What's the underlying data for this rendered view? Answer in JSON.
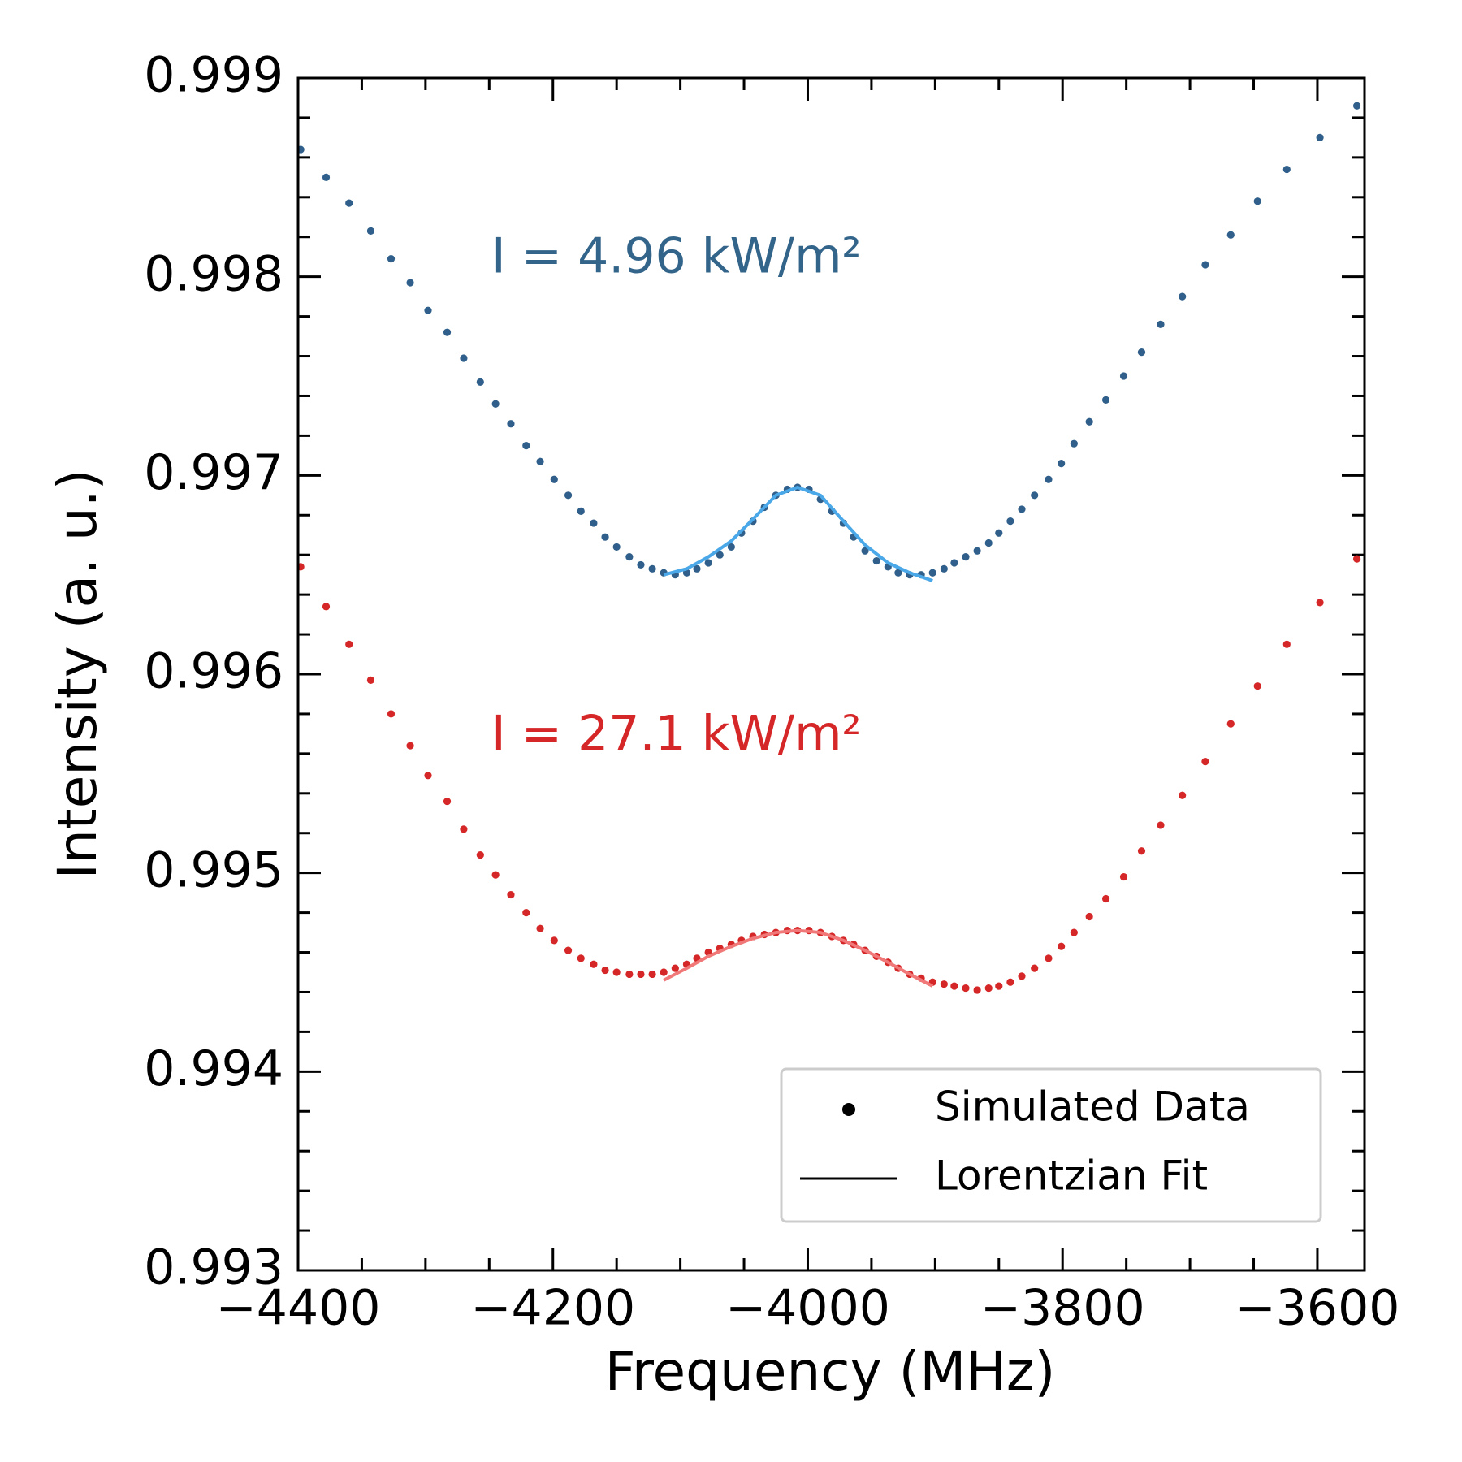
{
  "chart_data": {
    "type": "scatter",
    "xlabel": "Frequency (MHz)",
    "ylabel": "Intensity (a. u.)",
    "xlim": [
      -4400,
      -3563
    ],
    "ylim": [
      0.993,
      0.999
    ],
    "xticks": [
      {
        "value": -4400,
        "label": "−4400"
      },
      {
        "value": -4200,
        "label": "−4200"
      },
      {
        "value": -4000,
        "label": "−4000"
      },
      {
        "value": -3800,
        "label": "−3800"
      },
      {
        "value": -3600,
        "label": "−3600"
      }
    ],
    "xminorticks": [
      -4350,
      -4300,
      -4250,
      -4150,
      -4100,
      -4050,
      -3950,
      -3900,
      -3850,
      -3750,
      -3700,
      -3650
    ],
    "yticks": [
      0.993,
      0.994,
      0.995,
      0.996,
      0.997,
      0.998,
      0.999
    ],
    "yminorticks": [
      0.9932,
      0.9934,
      0.9936,
      0.9938,
      0.9942,
      0.9944,
      0.9946,
      0.9948,
      0.9952,
      0.9954,
      0.9956,
      0.9958,
      0.9962,
      0.9964,
      0.9966,
      0.9968,
      0.9972,
      0.9974,
      0.9976,
      0.9978,
      0.9982,
      0.9984,
      0.9986,
      0.9988
    ],
    "series": [
      {
        "kind": "dot",
        "color": "#2f5f8a",
        "x": [
          -4398,
          -4378,
          -4360,
          -4343,
          -4327,
          -4312,
          -4298,
          -4283,
          -4270,
          -4257,
          -4245,
          -4233,
          -4221,
          -4210,
          -4199,
          -4188,
          -4178,
          -4168,
          -4159,
          -4150,
          -4140,
          -4131,
          -4122,
          -4113,
          -4104,
          -4095,
          -4087,
          -4078,
          -4069,
          -4060,
          -4052,
          -4043,
          -4034,
          -4025,
          -4016,
          -4008,
          -3999,
          -3990,
          -3981,
          -3972,
          -3964,
          -3955,
          -3946,
          -3937,
          -3929,
          -3920,
          -3911,
          -3902,
          -3893,
          -3885,
          -3876,
          -3867,
          -3858,
          -3850,
          -3841,
          -3832,
          -3822,
          -3811,
          -3801,
          -3791,
          -3779,
          -3766,
          -3752,
          -3738,
          -3723,
          -3706,
          -3688,
          -3668,
          -3647,
          -3624,
          -3598,
          -3569
        ],
        "values": [
          0.99864,
          0.9985,
          0.99837,
          0.99823,
          0.99809,
          0.99797,
          0.99783,
          0.99772,
          0.99759,
          0.99747,
          0.99736,
          0.99726,
          0.99715,
          0.99707,
          0.99698,
          0.9969,
          0.99682,
          0.99676,
          0.99669,
          0.99664,
          0.99659,
          0.99655,
          0.99653,
          0.99651,
          0.9965,
          0.99651,
          0.99653,
          0.99656,
          0.9966,
          0.99664,
          0.99671,
          0.99677,
          0.99684,
          0.9969,
          0.99693,
          0.99694,
          0.99693,
          0.99688,
          0.99682,
          0.99676,
          0.99669,
          0.99662,
          0.99657,
          0.99654,
          0.99651,
          0.9965,
          0.9965,
          0.99651,
          0.99653,
          0.99656,
          0.99659,
          0.99662,
          0.99666,
          0.99671,
          0.99677,
          0.99683,
          0.9969,
          0.99698,
          0.99706,
          0.99716,
          0.99727,
          0.99738,
          0.9975,
          0.99762,
          0.99776,
          0.9979,
          0.99806,
          0.99821,
          0.99838,
          0.99854,
          0.9987,
          0.99886
        ]
      },
      {
        "kind": "dot",
        "color": "#d62728",
        "x": [
          -4398,
          -4378,
          -4360,
          -4343,
          -4327,
          -4312,
          -4298,
          -4283,
          -4270,
          -4257,
          -4245,
          -4233,
          -4221,
          -4210,
          -4199,
          -4188,
          -4178,
          -4168,
          -4159,
          -4150,
          -4140,
          -4131,
          -4122,
          -4113,
          -4104,
          -4095,
          -4087,
          -4078,
          -4069,
          -4060,
          -4052,
          -4043,
          -4034,
          -4025,
          -4016,
          -4008,
          -3999,
          -3990,
          -3981,
          -3972,
          -3964,
          -3955,
          -3946,
          -3937,
          -3929,
          -3920,
          -3911,
          -3902,
          -3893,
          -3885,
          -3876,
          -3867,
          -3858,
          -3850,
          -3841,
          -3832,
          -3822,
          -3811,
          -3801,
          -3791,
          -3779,
          -3766,
          -3752,
          -3738,
          -3723,
          -3706,
          -3688,
          -3668,
          -3647,
          -3624,
          -3598,
          -3569
        ],
        "values": [
          0.99654,
          0.99634,
          0.99615,
          0.99597,
          0.9958,
          0.99564,
          0.99549,
          0.99536,
          0.99522,
          0.99509,
          0.99499,
          0.99489,
          0.9948,
          0.99472,
          0.99466,
          0.99461,
          0.99457,
          0.99454,
          0.99451,
          0.9945,
          0.99449,
          0.99449,
          0.99449,
          0.9945,
          0.99452,
          0.99454,
          0.99457,
          0.9946,
          0.99462,
          0.99464,
          0.99466,
          0.99468,
          0.99469,
          0.9947,
          0.99471,
          0.99471,
          0.99471,
          0.9947,
          0.99468,
          0.99466,
          0.99464,
          0.99461,
          0.99458,
          0.99455,
          0.99452,
          0.99449,
          0.99447,
          0.99445,
          0.99444,
          0.99443,
          0.99442,
          0.99441,
          0.99442,
          0.99443,
          0.99445,
          0.99448,
          0.99452,
          0.99457,
          0.99463,
          0.9947,
          0.99478,
          0.99487,
          0.99498,
          0.99511,
          0.99524,
          0.99539,
          0.99556,
          0.99575,
          0.99594,
          0.99615,
          0.99636,
          0.99658
        ]
      },
      {
        "kind": "line",
        "color": "#4aa8e8",
        "x": [
          -4113,
          -4095,
          -4078,
          -4060,
          -4043,
          -4025,
          -4008,
          -3990,
          -3972,
          -3955,
          -3937,
          -3920,
          -3902
        ],
        "values": [
          0.9965,
          0.99653,
          0.99659,
          0.99667,
          0.99678,
          0.9969,
          0.99694,
          0.9969,
          0.99677,
          0.99665,
          0.99656,
          0.99651,
          0.99647
        ]
      },
      {
        "kind": "line",
        "color": "#f07878",
        "x": [
          -4113,
          -4095,
          -4078,
          -4060,
          -4043,
          -4025,
          -4008,
          -3990,
          -3972,
          -3955,
          -3937,
          -3920,
          -3902
        ],
        "values": [
          0.99446,
          0.99452,
          0.99458,
          0.99463,
          0.99467,
          0.9947,
          0.99471,
          0.9947,
          0.99466,
          0.99461,
          0.99455,
          0.99449,
          0.99443
        ]
      }
    ],
    "annotations": [
      {
        "text": "I = 4.96 kW/m²",
        "color": "#33648a"
      },
      {
        "text": "I = 27.1 kW/m²",
        "color": "#d62728"
      }
    ],
    "legend": {
      "loc": "lower right",
      "entries": [
        {
          "label": "Simulated Data",
          "kind": "dot"
        },
        {
          "label": "Lorentzian Fit",
          "kind": "line"
        }
      ]
    }
  }
}
